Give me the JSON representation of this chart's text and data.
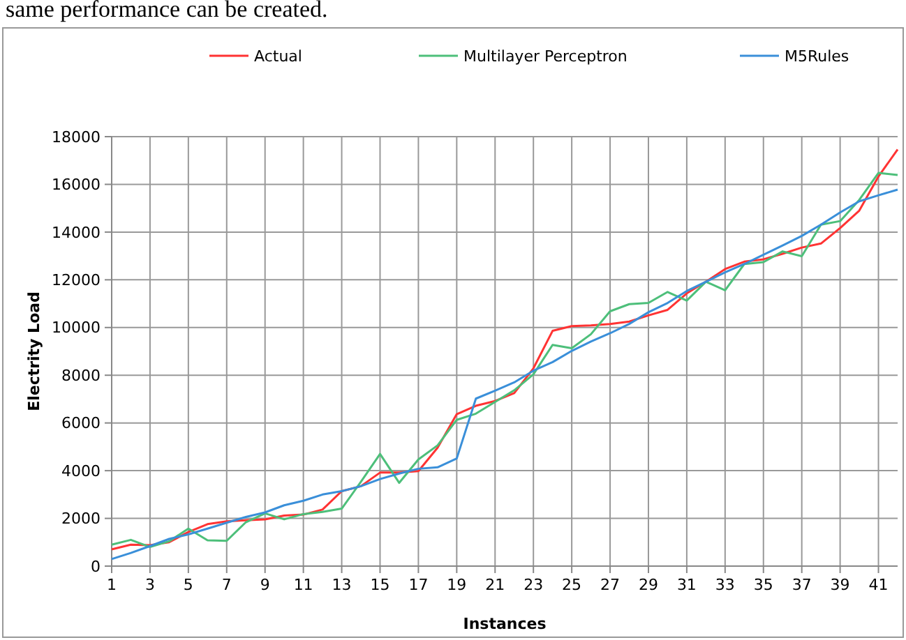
{
  "chart_data": {
    "type": "line",
    "xlabel": "Instances",
    "ylabel": "Electrity Load",
    "annotations": [
      "same performance can be created."
    ],
    "x": [
      1,
      2,
      3,
      4,
      5,
      6,
      7,
      8,
      9,
      10,
      11,
      12,
      13,
      14,
      15,
      16,
      17,
      18,
      19,
      20,
      21,
      22,
      23,
      24,
      25,
      26,
      27,
      28,
      29,
      30,
      31,
      32,
      33,
      34,
      35,
      36,
      37,
      38,
      39,
      40,
      41,
      42
    ],
    "xlim": [
      1,
      42
    ],
    "xticks": [
      1,
      3,
      5,
      7,
      9,
      11,
      13,
      15,
      17,
      19,
      21,
      23,
      25,
      27,
      29,
      31,
      33,
      35,
      37,
      39,
      41
    ],
    "ylim": [
      0,
      18000
    ],
    "yticks": [
      0,
      2000,
      4000,
      6000,
      8000,
      10000,
      12000,
      14000,
      16000,
      18000
    ],
    "grid": true,
    "legend": "top",
    "marker": "none",
    "line_style": "solid",
    "series": [
      {
        "name": "Actual",
        "color": "#ff3333",
        "values": [
          700,
          900,
          880,
          1000,
          1430,
          1760,
          1880,
          1920,
          1960,
          2120,
          2160,
          2370,
          3140,
          3350,
          3920,
          3920,
          3980,
          4960,
          6370,
          6720,
          6920,
          7250,
          8290,
          9860,
          10060,
          10090,
          10150,
          10250,
          10510,
          10740,
          11430,
          11920,
          12450,
          12760,
          12860,
          13090,
          13350,
          13520,
          14170,
          14900,
          16330,
          17460
        ]
      },
      {
        "name": "Multilayer Perceptron",
        "color": "#4dbf7a",
        "values": [
          900,
          1100,
          800,
          1040,
          1570,
          1080,
          1060,
          1840,
          2210,
          1960,
          2180,
          2270,
          2410,
          3530,
          4700,
          3490,
          4470,
          5060,
          6130,
          6390,
          6880,
          7370,
          8040,
          9270,
          9130,
          9720,
          10680,
          10980,
          11030,
          11490,
          11130,
          11920,
          11560,
          12660,
          12740,
          13190,
          12990,
          14310,
          14460,
          15350,
          16480,
          16390
        ]
      },
      {
        "name": "M5Rules",
        "color": "#3a8fd9",
        "values": [
          294,
          550,
          840,
          1140,
          1330,
          1570,
          1820,
          2060,
          2250,
          2550,
          2740,
          3000,
          3140,
          3350,
          3650,
          3880,
          4080,
          4140,
          4510,
          7020,
          7350,
          7700,
          8190,
          8550,
          9020,
          9410,
          9760,
          10150,
          10640,
          11030,
          11530,
          11920,
          12310,
          12660,
          13050,
          13440,
          13840,
          14310,
          14820,
          15290,
          15540,
          15780
        ]
      }
    ]
  }
}
